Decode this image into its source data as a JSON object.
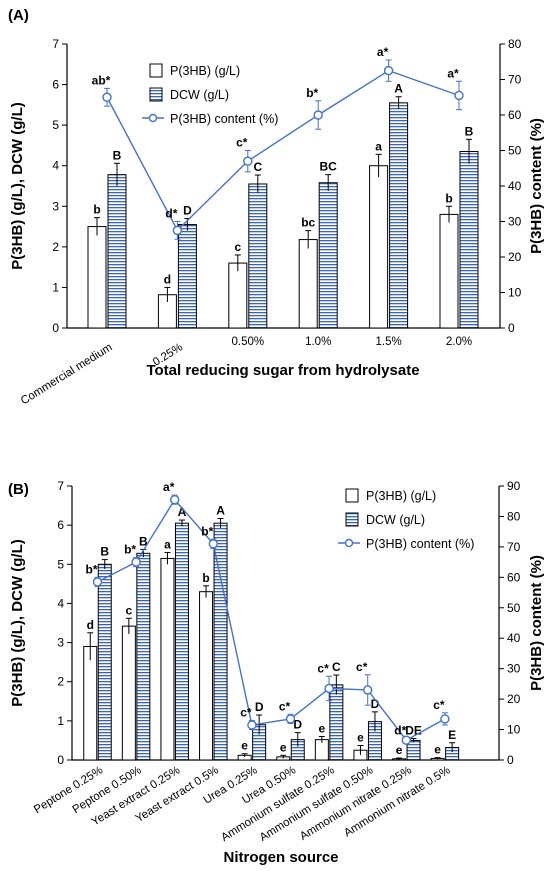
{
  "chart_data": [
    {
      "panel_label": "(A)",
      "type": "bar",
      "categories": [
        "Commercial medium",
        "0.25%",
        "0.50%",
        "1.0%",
        "1.5%",
        "2.0%"
      ],
      "xlabel": "Total reducing sugar from hydrolysate",
      "ylabel": "P(3HB) (g/L), DCW (g/L)",
      "ylabel2": "P(3HB) content (%)",
      "ylim": [
        0,
        7
      ],
      "y2lim": [
        0,
        80
      ],
      "yticks": [
        "0",
        "1",
        "2",
        "3",
        "4",
        "5",
        "6",
        "7"
      ],
      "y2ticks": [
        "0",
        "10",
        "20",
        "30",
        "40",
        "50",
        "60",
        "70",
        "80"
      ],
      "legend_position": "top-center",
      "series": [
        {
          "name": "P(3HB) (g/L)",
          "kind": "bar",
          "fill": "#ffffff",
          "values": [
            2.5,
            0.82,
            1.6,
            2.18,
            4.0,
            2.8
          ],
          "errors": [
            0.22,
            0.18,
            0.2,
            0.22,
            0.28,
            0.2
          ],
          "labels": [
            "b",
            "d",
            "c",
            "bc",
            "a",
            "b"
          ]
        },
        {
          "name": "DCW (g/L)",
          "kind": "bar",
          "fill": "striped",
          "values": [
            3.78,
            2.55,
            3.55,
            3.58,
            5.55,
            4.35
          ],
          "errors": [
            0.28,
            0.15,
            0.22,
            0.2,
            0.15,
            0.3
          ],
          "labels": [
            "B",
            "D",
            "C",
            "BC",
            "A",
            "B"
          ]
        },
        {
          "name": "P(3HB) content (%)",
          "kind": "line",
          "axis": "right",
          "color": "#4472c4",
          "values": [
            65,
            27.5,
            47,
            60,
            72.5,
            65.5
          ],
          "errors": [
            2.5,
            2.5,
            3,
            4,
            3,
            4
          ],
          "labels": [
            "ab*",
            "d*",
            "c*",
            "b*",
            "a*",
            "a*"
          ]
        }
      ]
    },
    {
      "panel_label": "(B)",
      "type": "bar",
      "categories": [
        "Peptone 0.25%",
        "Peptone 0.50%",
        "Yeast extract 0.25%",
        "Yeast extract 0.5%",
        "Urea 0.25%",
        "Urea 0.50%",
        "Ammonium sulfate 0.25%",
        "Ammonium sulfate 0.50%",
        "Ammonium nitrate 0.25%",
        "Ammonium nitrate 0.5%"
      ],
      "xlabel": "Nitrogen source",
      "ylabel": "P(3HB) (g/L), DCW (g/L)",
      "ylabel2": "P(3HB) content (%)",
      "ylim": [
        0,
        7
      ],
      "y2lim": [
        0,
        90
      ],
      "yticks": [
        "0",
        "1",
        "2",
        "3",
        "4",
        "5",
        "6",
        "7"
      ],
      "y2ticks": [
        "0",
        "10",
        "20",
        "30",
        "40",
        "50",
        "60",
        "70",
        "80",
        "90"
      ],
      "legend_position": "top-right",
      "series": [
        {
          "name": "P(3HB) (g/L)",
          "kind": "bar",
          "fill": "#ffffff",
          "values": [
            2.9,
            3.42,
            5.15,
            4.3,
            0.12,
            0.08,
            0.52,
            0.25,
            0.03,
            0.04
          ],
          "errors": [
            0.35,
            0.2,
            0.15,
            0.15,
            0.04,
            0.04,
            0.08,
            0.12,
            0.02,
            0.02
          ],
          "labels": [
            "d",
            "c",
            "a",
            "b",
            "e",
            "e",
            "e",
            "e",
            "e",
            "e"
          ]
        },
        {
          "name": "DCW (g/L)",
          "kind": "bar",
          "fill": "striped",
          "values": [
            5.0,
            5.28,
            6.05,
            6.05,
            0.9,
            0.52,
            1.92,
            0.98,
            0.5,
            0.32
          ],
          "errors": [
            0.12,
            0.1,
            0.08,
            0.12,
            0.25,
            0.18,
            0.25,
            0.25,
            0.05,
            0.12
          ],
          "labels": [
            "B",
            "B",
            "A",
            "A",
            "D",
            "D",
            "C",
            "D",
            "DE",
            "E"
          ]
        },
        {
          "name": "P(3HB) content (%)",
          "kind": "line",
          "axis": "right",
          "color": "#4472c4",
          "values": [
            58.5,
            65,
            85.5,
            71,
            11.5,
            13.5,
            23.5,
            23,
            6.5,
            13.5
          ],
          "errors": [
            1.5,
            1.5,
            1.5,
            1.5,
            1.5,
            1.5,
            4,
            5,
            0.5,
            2
          ],
          "labels": [
            "b*",
            "b*",
            "a*",
            "b*",
            "c*",
            "c*",
            "c*",
            "c*",
            "d*",
            "c*"
          ]
        }
      ]
    }
  ]
}
